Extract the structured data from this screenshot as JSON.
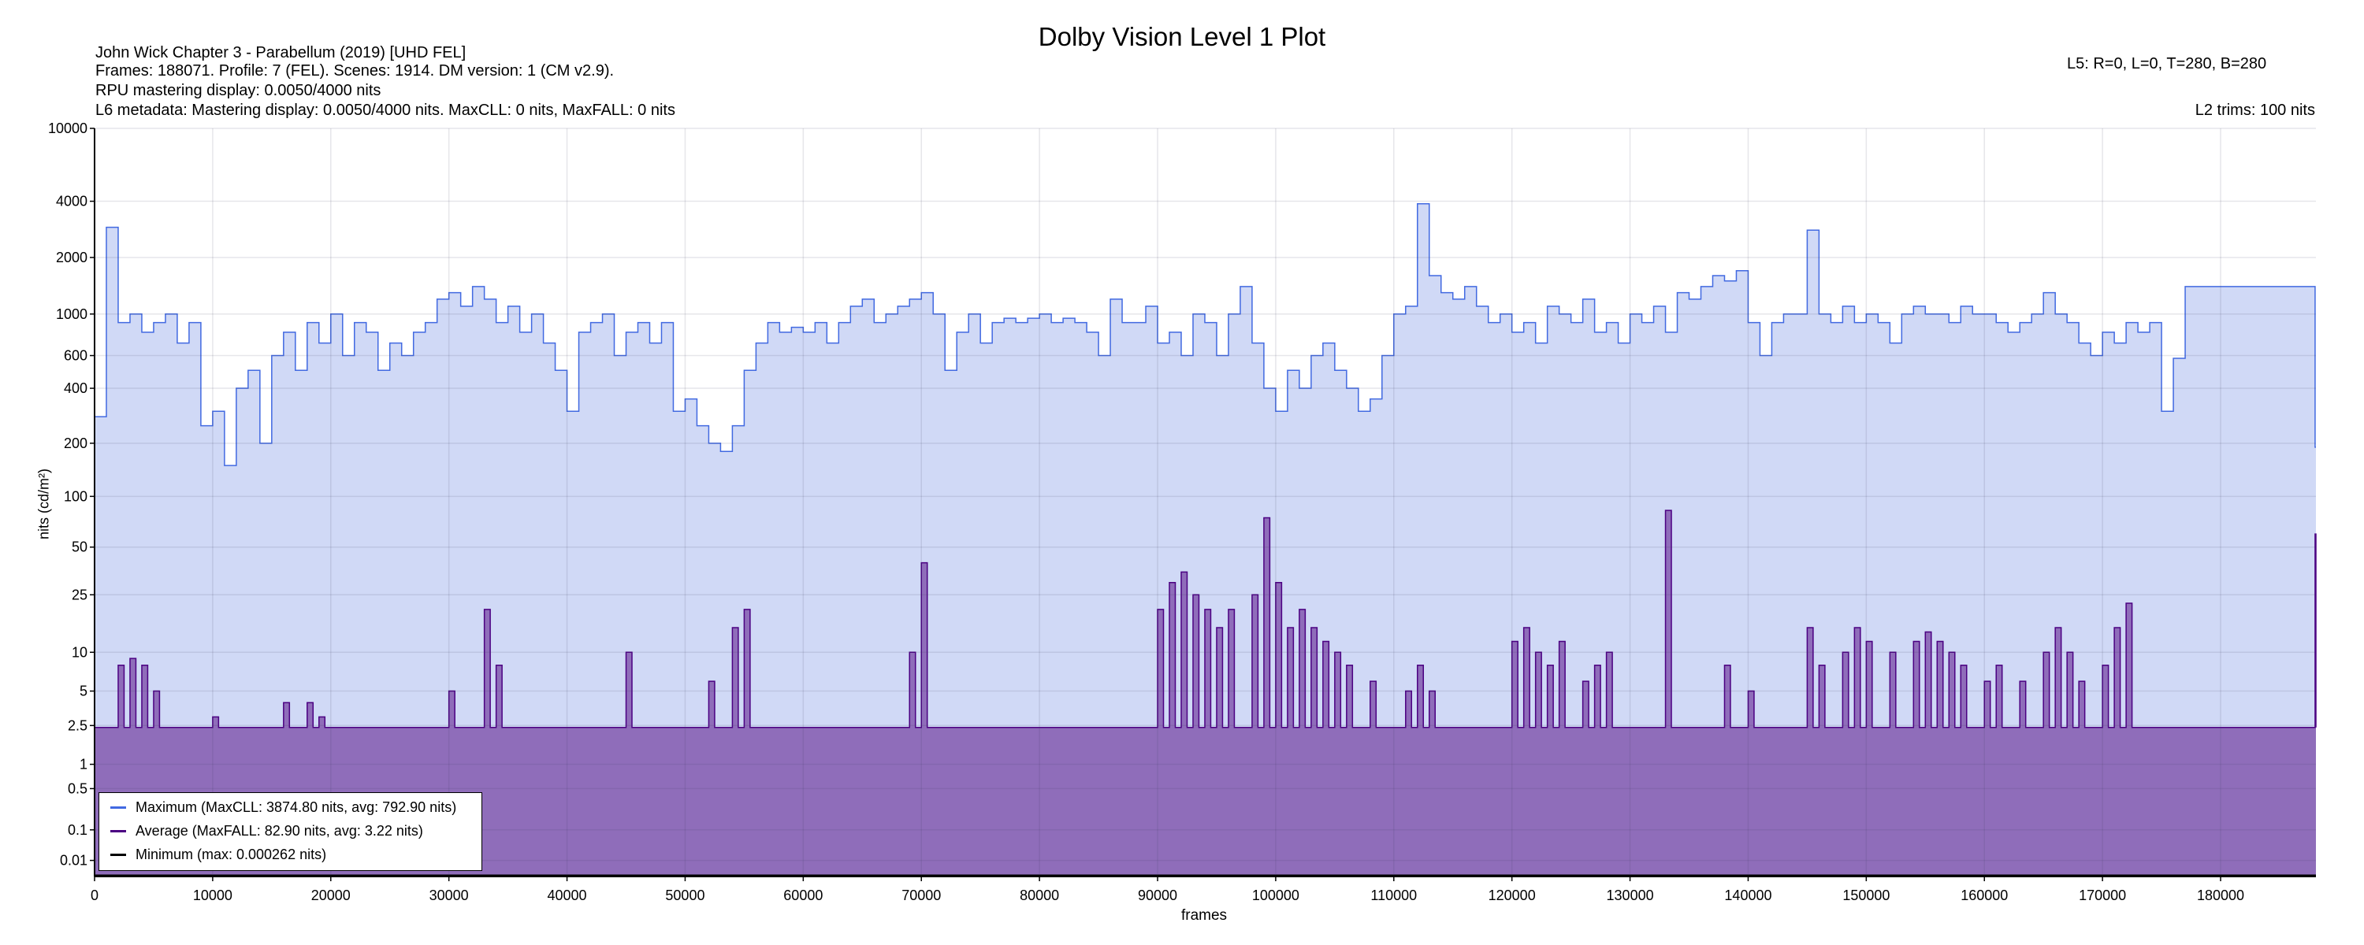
{
  "header": {
    "title": "Dolby Vision Level 1 Plot",
    "lines": [
      "John Wick Chapter 3 - Parabellum (2019) [UHD FEL]",
      "Frames: 188071. Profile: 7 (FEL). Scenes: 1914. DM version: 1 (CM v2.9).",
      "RPU mastering display: 0.0050/4000 nits",
      "L6 metadata: Mastering display: 0.0050/4000 nits. MaxCLL: 0 nits, MaxFALL: 0 nits"
    ],
    "l5": "L5: R=0, L=0, T=280, B=280",
    "l2": "L2 trims: 100 nits"
  },
  "chart_data": {
    "type": "area",
    "title": "Dolby Vision Level 1 Plot",
    "xlabel": "frames",
    "ylabel": "nits (cd/m²)",
    "xlim": [
      0,
      188071
    ],
    "ylim": [
      0,
      10000
    ],
    "yscale": "pq",
    "grid": true,
    "legend_position": "bottom-left",
    "x_ticks": [
      "0",
      "10000",
      "20000",
      "30000",
      "40000",
      "50000",
      "60000",
      "70000",
      "80000",
      "90000",
      "100000",
      "110000",
      "120000",
      "130000",
      "140000",
      "150000",
      "160000",
      "170000",
      "180000"
    ],
    "y_ticks": [
      "10000",
      "4000",
      "2000",
      "1000",
      "600",
      "400",
      "200",
      "100",
      "50",
      "25",
      "10",
      "5",
      "2.5",
      "1",
      "0.5",
      "0.1",
      "0.01"
    ],
    "x_step": 1000,
    "series": [
      {
        "name": "Maximum",
        "legend": "Maximum (MaxCLL: 3874.80 nits, avg: 792.90 nits)",
        "color": "#4169e1",
        "fill": "#d0d9f6",
        "values": [
          280,
          2900,
          900,
          1000,
          800,
          900,
          1000,
          700,
          900,
          250,
          300,
          150,
          400,
          500,
          200,
          600,
          800,
          500,
          900,
          700,
          1000,
          600,
          900,
          800,
          500,
          700,
          600,
          800,
          900,
          1200,
          1300,
          1100,
          1400,
          1200,
          900,
          1100,
          800,
          1000,
          700,
          500,
          300,
          800,
          900,
          1000,
          600,
          800,
          900,
          700,
          900,
          300,
          350,
          250,
          200,
          180,
          250,
          500,
          700,
          900,
          800,
          850,
          800,
          900,
          700,
          900,
          1100,
          1200,
          900,
          1000,
          1100,
          1200,
          1300,
          1000,
          500,
          800,
          1000,
          700,
          900,
          950,
          900,
          950,
          1000,
          900,
          950,
          900,
          800,
          600,
          1200,
          900,
          900,
          1100,
          700,
          800,
          600,
          1000,
          900,
          600,
          1000,
          1400,
          700,
          400,
          300,
          500,
          400,
          600,
          700,
          500,
          400,
          300,
          350,
          600,
          1000,
          1100,
          3874.8,
          1600,
          1300,
          1200,
          1400,
          1100,
          900,
          1000,
          800,
          900,
          700,
          1100,
          1000,
          900,
          1200,
          800,
          900,
          700,
          1000,
          900,
          1100,
          800,
          1300,
          1200,
          1400,
          1600,
          1500,
          1700,
          900,
          600,
          900,
          1000,
          1000,
          2800,
          1000,
          900,
          1100,
          900,
          1000,
          900,
          700,
          1000,
          1100,
          1000,
          1000,
          900,
          1100,
          1000,
          1000,
          900,
          800,
          900,
          1000,
          1300,
          1000,
          900,
          700,
          600,
          800,
          700,
          900,
          800,
          900,
          300,
          580,
          1400,
          1400,
          1400,
          1400,
          1400,
          1400,
          1400,
          1400,
          1400,
          1400,
          1400,
          190
        ]
      },
      {
        "name": "Average",
        "legend": "Average (MaxFALL: 82.90 nits, avg: 3.22 nits)",
        "color": "#4b0082",
        "fill": "#8f6dba",
        "baseline": 2.4,
        "peaks": [
          [
            2,
            8
          ],
          [
            3,
            9
          ],
          [
            4,
            8
          ],
          [
            5,
            5
          ],
          [
            10,
            3
          ],
          [
            16,
            4
          ],
          [
            18,
            4
          ],
          [
            19,
            3
          ],
          [
            30,
            5
          ],
          [
            33,
            20
          ],
          [
            34,
            8
          ],
          [
            45,
            10
          ],
          [
            52,
            6
          ],
          [
            54,
            15
          ],
          [
            55,
            20
          ],
          [
            69,
            10
          ],
          [
            70,
            40
          ],
          [
            90,
            20
          ],
          [
            91,
            30
          ],
          [
            92,
            35
          ],
          [
            93,
            25
          ],
          [
            94,
            20
          ],
          [
            95,
            15
          ],
          [
            96,
            20
          ],
          [
            98,
            25
          ],
          [
            99,
            75
          ],
          [
            100,
            30
          ],
          [
            101,
            15
          ],
          [
            102,
            20
          ],
          [
            103,
            15
          ],
          [
            104,
            12
          ],
          [
            105,
            10
          ],
          [
            106,
            8
          ],
          [
            108,
            6
          ],
          [
            111,
            5
          ],
          [
            112,
            8
          ],
          [
            113,
            5
          ],
          [
            120,
            12
          ],
          [
            121,
            15
          ],
          [
            122,
            10
          ],
          [
            123,
            8
          ],
          [
            124,
            12
          ],
          [
            126,
            6
          ],
          [
            127,
            8
          ],
          [
            128,
            10
          ],
          [
            133,
            82.9
          ],
          [
            138,
            8
          ],
          [
            140,
            5
          ],
          [
            145,
            15
          ],
          [
            146,
            8
          ],
          [
            148,
            10
          ],
          [
            149,
            15
          ],
          [
            150,
            12
          ],
          [
            152,
            10
          ],
          [
            154,
            12
          ],
          [
            155,
            14
          ],
          [
            156,
            12
          ],
          [
            157,
            10
          ],
          [
            158,
            8
          ],
          [
            160,
            6
          ],
          [
            161,
            8
          ],
          [
            163,
            6
          ],
          [
            165,
            10
          ],
          [
            166,
            15
          ],
          [
            167,
            10
          ],
          [
            168,
            6
          ],
          [
            170,
            8
          ],
          [
            171,
            15
          ],
          [
            172,
            22
          ],
          [
            188,
            60
          ]
        ]
      },
      {
        "name": "Minimum",
        "legend": "Minimum (max: 0.000262 nits)",
        "color": "#000000",
        "max": 0.000262
      }
    ]
  }
}
